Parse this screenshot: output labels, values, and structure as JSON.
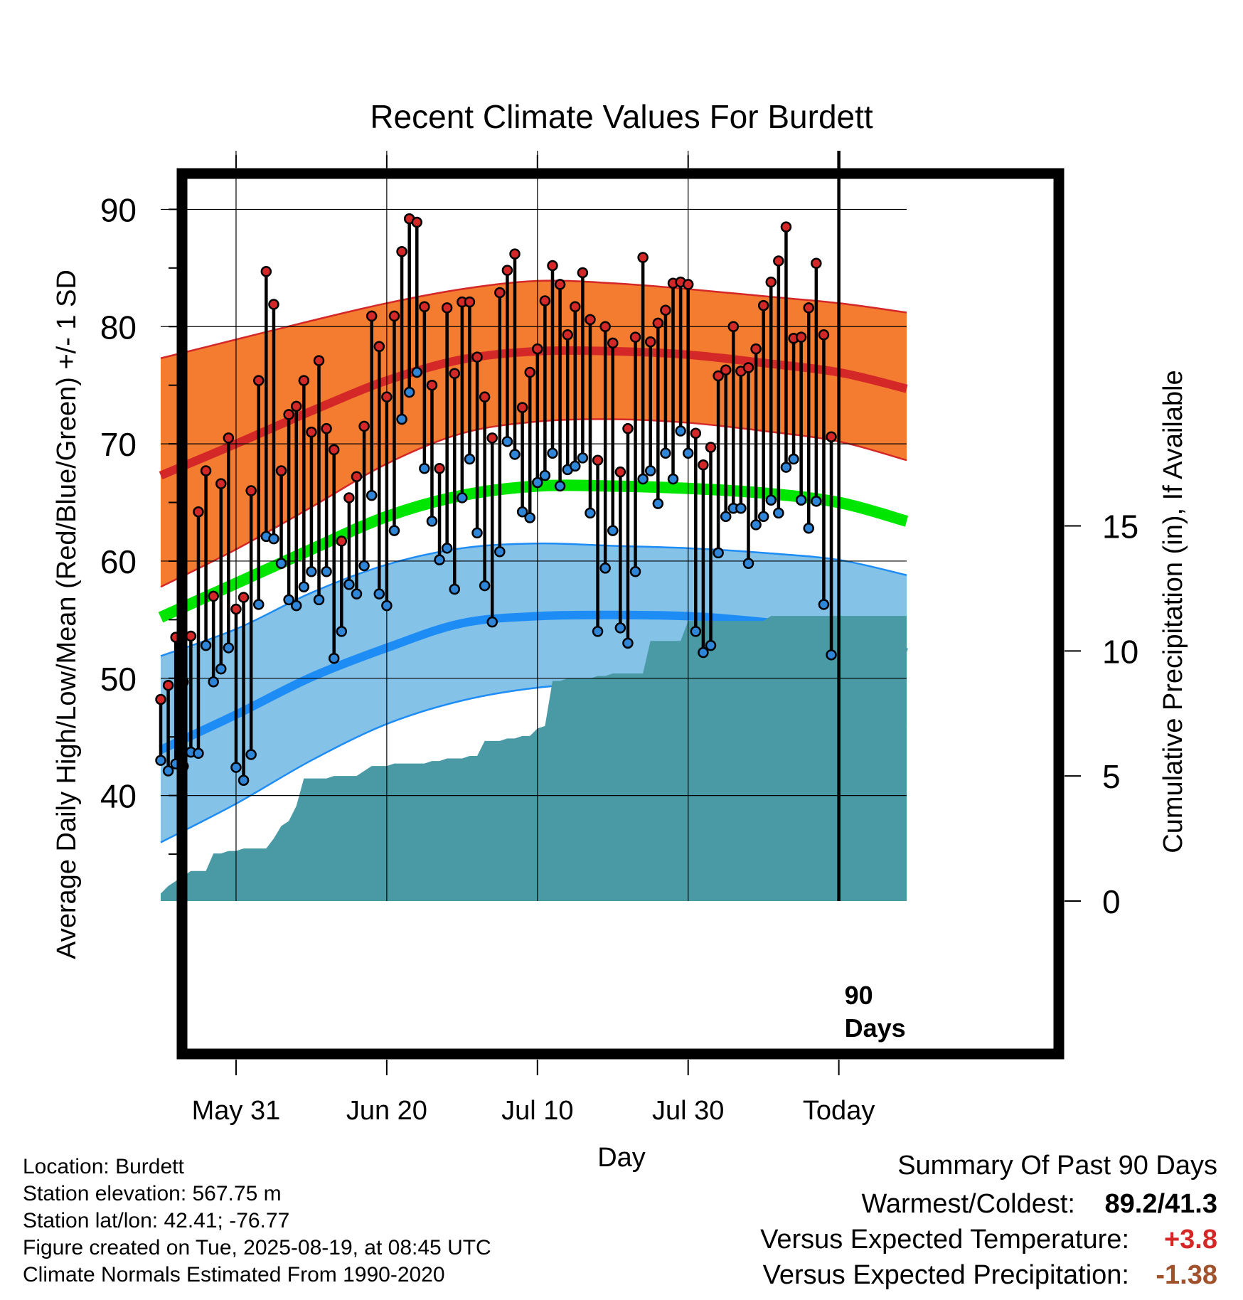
{
  "title": "Recent Climate Values For Burdett",
  "y_label_left": "Average Daily High/Low/Mean (Red/Blue/Green) +/- 1 SD",
  "y_label_right": "Cumulative Precipitation (in), If Available",
  "x_label": "Day",
  "today_marker_label": [
    "90",
    "Days"
  ],
  "metadata": [
    "Location: Burdett",
    "Station elevation: 567.75 m",
    "Station lat/lon: 42.41; -76.77",
    "Figure created on Tue, 2025-08-19, at 08:45 UTC",
    "Climate Normals Estimated From 1990-2020"
  ],
  "summary": {
    "title": "Summary Of Past 90 Days",
    "warm_cold_label": "Warmest/Coldest:",
    "warm_cold_value": "89.2/41.3",
    "temp_label": "Versus Expected Temperature:",
    "temp_value": "+3.8",
    "precip_label": "Versus Expected Precipitation:",
    "precip_value": "-1.38"
  },
  "colors": {
    "high_band": "#f47c30",
    "high_mean_line": "#d42828",
    "low_band": "#84c2e8",
    "low_mean_line": "#1e8cf5",
    "mean_line": "#00e600",
    "precip_fill": "#4a9aa6",
    "high_point": "#d42828",
    "low_point": "#2f86d8",
    "temp_anomaly": "#d42828",
    "precip_anomaly": "#a0522d"
  },
  "chart_data": {
    "type": "line",
    "x_axis": {
      "unit": "days relative to today",
      "range": [
        -90,
        9
      ],
      "tick_labels": [
        "May 31",
        "Jun 20",
        "Jul 10",
        "Jul 30",
        "Today"
      ],
      "tick_values": [
        -80,
        -60,
        -40,
        -20,
        0
      ]
    },
    "y_axis_left": {
      "range": [
        31,
        95
      ],
      "tick_values": [
        40,
        50,
        60,
        70,
        80,
        90
      ]
    },
    "y_axis_right": {
      "range": [
        0,
        30
      ],
      "tick_values": [
        0,
        5,
        10,
        15
      ]
    },
    "grid": true,
    "normals": {
      "x": [
        -90,
        -80,
        -70,
        -60,
        -50,
        -40,
        -30,
        -20,
        -10,
        0,
        9
      ],
      "high_upper": [
        77.3,
        78.9,
        80.5,
        82.0,
        83.2,
        83.9,
        83.7,
        83.2,
        82.6,
        82.0,
        81.2
      ],
      "high_mean": [
        67.3,
        70.0,
        72.8,
        75.4,
        77.2,
        77.9,
        77.9,
        77.6,
        76.9,
        76.1,
        74.7
      ],
      "high_lower": [
        57.8,
        61.0,
        64.6,
        68.3,
        70.9,
        71.9,
        72.1,
        71.8,
        71.1,
        70.2,
        68.6
      ],
      "mean": [
        55.2,
        58.1,
        61.0,
        63.8,
        65.6,
        66.4,
        66.4,
        66.2,
        65.8,
        65.0,
        63.4
      ],
      "low_upper": [
        51.9,
        54.2,
        57.3,
        59.7,
        61.1,
        61.5,
        61.3,
        61.1,
        60.7,
        60.1,
        58.8
      ],
      "low_mean": [
        43.9,
        46.9,
        50.1,
        52.6,
        54.7,
        55.3,
        55.4,
        55.3,
        54.8,
        54.0,
        52.2
      ],
      "low_lower": [
        36.0,
        39.3,
        43.0,
        46.1,
        48.1,
        49.2,
        49.6,
        49.5,
        48.6,
        47.2,
        46.1
      ]
    },
    "series": [
      {
        "name": "High",
        "x": [
          -90,
          -89,
          -88,
          -87,
          -86,
          -85,
          -84,
          -83,
          -82,
          -81,
          -80,
          -79,
          -78,
          -77,
          -76,
          -75,
          -74,
          -73,
          -72,
          -71,
          -70,
          -69,
          -68,
          -67,
          -66,
          -65,
          -64,
          -63,
          -62,
          -61,
          -60,
          -59,
          -58,
          -57,
          -56,
          -55,
          -54,
          -53,
          -52,
          -51,
          -50,
          -49,
          -48,
          -47,
          -46,
          -45,
          -44,
          -43,
          -42,
          -41,
          -40,
          -39,
          -38,
          -37,
          -36,
          -35,
          -34,
          -33,
          -32,
          -31,
          -30,
          -29,
          -28,
          -27,
          -26,
          -25,
          -24,
          -23,
          -22,
          -21,
          -20,
          -19,
          -18,
          -17,
          -16,
          -15,
          -14,
          -13,
          -12,
          -11,
          -10,
          -9,
          -8,
          -7,
          -6,
          -5,
          -4,
          -3,
          -2,
          -1
        ],
        "values": [
          48.2,
          49.4,
          53.5,
          49.7,
          53.6,
          64.2,
          67.7,
          57.0,
          66.6,
          70.5,
          55.9,
          56.9,
          66.0,
          75.4,
          84.7,
          81.9,
          67.7,
          72.5,
          73.2,
          75.4,
          71.0,
          77.1,
          71.3,
          69.5,
          61.7,
          65.4,
          67.2,
          71.5,
          80.9,
          78.3,
          74.0,
          80.9,
          86.4,
          89.2,
          88.9,
          81.7,
          75.0,
          67.9,
          81.6,
          76.0,
          82.1,
          82.1,
          77.4,
          74.0,
          70.5,
          82.9,
          84.8,
          86.2,
          73.1,
          76.1,
          78.1,
          82.2,
          85.2,
          83.6,
          79.3,
          81.7,
          84.6,
          80.6,
          68.6,
          80.0,
          78.6,
          67.6,
          71.3,
          79.1,
          85.9,
          78.7,
          80.3,
          81.4,
          83.7,
          83.8,
          83.6,
          70.9,
          68.2,
          69.7,
          75.8,
          76.3,
          80.0,
          76.2,
          76.5,
          78.1,
          81.8,
          83.8,
          85.6,
          88.5,
          79.0,
          79.1,
          81.6,
          85.4,
          79.3,
          70.6
        ]
      },
      {
        "name": "Low",
        "values": [
          43.0,
          42.1,
          42.7,
          42.5,
          43.7,
          43.6,
          52.8,
          49.7,
          50.8,
          52.6,
          42.4,
          41.3,
          43.5,
          56.3,
          62.1,
          61.9,
          59.8,
          56.7,
          56.2,
          57.8,
          59.1,
          56.7,
          59.1,
          51.7,
          54.0,
          58.0,
          57.2,
          59.6,
          65.6,
          57.2,
          56.2,
          62.6,
          72.1,
          74.4,
          76.1,
          67.9,
          63.4,
          60.1,
          61.1,
          57.6,
          65.4,
          68.7,
          62.4,
          57.9,
          54.8,
          60.8,
          70.2,
          69.1,
          64.2,
          63.7,
          66.7,
          67.3,
          69.2,
          66.4,
          67.8,
          68.1,
          68.8,
          64.1,
          54.0,
          59.4,
          62.6,
          54.3,
          53.0,
          59.1,
          67.0,
          67.7,
          64.9,
          69.2,
          67.0,
          71.1,
          69.2,
          54.0,
          52.2,
          52.8,
          60.7,
          63.8,
          64.5,
          64.5,
          59.8,
          63.1,
          63.8,
          65.2,
          64.1,
          68.0,
          68.7,
          65.2,
          62.8,
          65.1,
          56.3,
          52.0
        ]
      }
    ],
    "cumulative_precipitation": {
      "x": [
        -90,
        -89,
        -88,
        -87,
        -86,
        -85,
        -84,
        -83,
        -82,
        -81,
        -80,
        -79,
        -78,
        -77,
        -76,
        -75,
        -74,
        -73,
        -72,
        -71,
        -70,
        -69,
        -68,
        -67,
        -66,
        -65,
        -64,
        -63,
        -62,
        -61,
        -60,
        -59,
        -58,
        -57,
        -56,
        -55,
        -54,
        -53,
        -52,
        -51,
        -50,
        -49,
        -48,
        -47,
        -46,
        -45,
        -44,
        -43,
        -42,
        -41,
        -40,
        -39,
        -38,
        -37,
        -36,
        -35,
        -34,
        -33,
        -32,
        -31,
        -30,
        -29,
        -28,
        -27,
        -26,
        -25,
        -24,
        -23,
        -22,
        -21,
        -20,
        -19,
        -18,
        -17,
        -16,
        -15,
        -14,
        -13,
        -12,
        -11,
        -10,
        -9,
        -8,
        -7,
        -6,
        -5,
        -4,
        -3,
        -2,
        -1,
        0,
        9
      ],
      "values": [
        0.3,
        0.6,
        0.8,
        1.0,
        1.2,
        1.2,
        1.2,
        1.9,
        1.9,
        2.0,
        2.0,
        2.1,
        2.1,
        2.1,
        2.1,
        2.5,
        3.0,
        3.2,
        3.8,
        4.9,
        4.9,
        4.9,
        4.9,
        5.0,
        5.0,
        5.0,
        5.0,
        5.2,
        5.4,
        5.4,
        5.4,
        5.5,
        5.5,
        5.5,
        5.5,
        5.5,
        5.6,
        5.6,
        5.7,
        5.7,
        5.7,
        5.8,
        5.8,
        6.4,
        6.4,
        6.4,
        6.5,
        6.5,
        6.6,
        6.6,
        6.9,
        7.0,
        8.8,
        8.8,
        8.9,
        8.9,
        8.9,
        8.9,
        9.0,
        9.0,
        9.1,
        9.1,
        9.1,
        9.1,
        9.1,
        10.4,
        10.4,
        10.4,
        10.4,
        10.4,
        11.2,
        11.2,
        11.2,
        11.2,
        11.2,
        11.2,
        11.2,
        11.2,
        11.2,
        11.2,
        11.2,
        11.4,
        11.4,
        11.4,
        11.4,
        11.4,
        11.4,
        11.4,
        11.4,
        11.4,
        11.4,
        11.4
      ]
    }
  }
}
